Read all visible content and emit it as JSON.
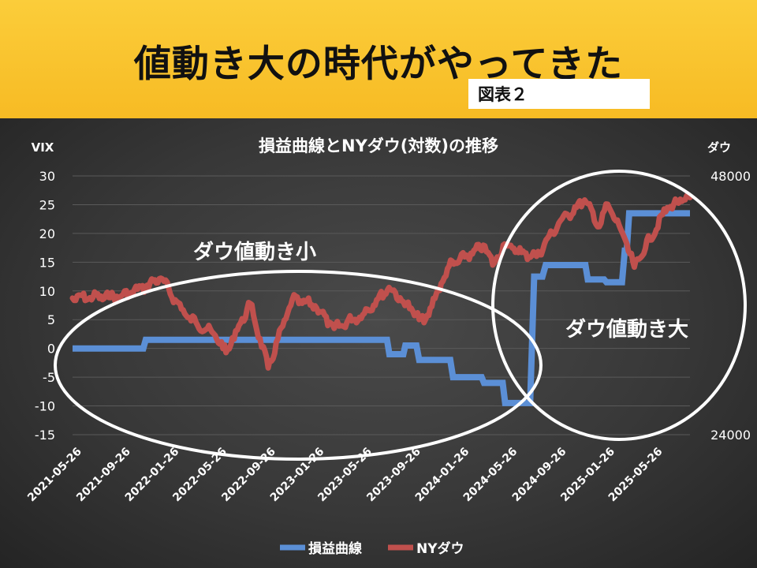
{
  "banner": {
    "title": "値動き大の時代がやってきた",
    "figure_label": "図表２"
  },
  "chart_data": {
    "type": "line",
    "title": "損益曲線とNYダウ(対数)の推移",
    "left_axis": {
      "label": "VIX",
      "ticks": [
        30,
        25,
        20,
        15,
        10,
        5,
        0,
        -5,
        -10,
        -15
      ],
      "range": [
        -15,
        30
      ]
    },
    "right_axis": {
      "label": "ダウ",
      "ticks": [
        "48000",
        "24000"
      ],
      "range": [
        24000,
        48000
      ],
      "scale": "log"
    },
    "x_ticks": [
      "2021-05-26",
      "2021-09-26",
      "2022-01-26",
      "2022-05-26",
      "2022-09-26",
      "2023-01-26",
      "2023-05-26",
      "2023-09-26",
      "2024-01-26",
      "2024-05-26",
      "2024-09-26",
      "2025-01-26",
      "2025-05-26"
    ],
    "grid": true,
    "legend": "bottom",
    "series": [
      {
        "name": "損益曲線",
        "color": "#5b8fd6",
        "axis": "left",
        "points": [
          [
            "2021-05-26",
            0
          ],
          [
            "2021-11-20",
            0
          ],
          [
            "2021-11-26",
            1.5
          ],
          [
            "2023-07-26",
            1.5
          ],
          [
            "2023-08-01",
            -1
          ],
          [
            "2023-09-05",
            -1
          ],
          [
            "2023-09-10",
            0.5
          ],
          [
            "2023-10-08",
            0.5
          ],
          [
            "2023-10-15",
            -2
          ],
          [
            "2024-01-01",
            -2
          ],
          [
            "2024-01-08",
            -5
          ],
          [
            "2024-03-20",
            -5
          ],
          [
            "2024-03-26",
            -6
          ],
          [
            "2024-05-12",
            -6
          ],
          [
            "2024-05-18",
            -9.5
          ],
          [
            "2024-07-20",
            -9.5
          ],
          [
            "2024-07-30",
            12.5
          ],
          [
            "2024-08-20",
            12.5
          ],
          [
            "2024-08-28",
            14.5
          ],
          [
            "2024-12-06",
            14.5
          ],
          [
            "2024-12-12",
            12
          ],
          [
            "2025-01-22",
            12
          ],
          [
            "2025-01-28",
            11.5
          ],
          [
            "2025-03-08",
            11.5
          ],
          [
            "2025-03-15",
            17
          ],
          [
            "2025-03-20",
            17
          ],
          [
            "2025-03-26",
            23.5
          ],
          [
            "2025-08-26",
            23.5
          ]
        ]
      },
      {
        "name": "NYダウ",
        "color": "#c0504d",
        "axis": "right",
        "points": [
          [
            "2021-05-26",
            34600
          ],
          [
            "2021-09-26",
            34800
          ],
          [
            "2021-11-26",
            35700
          ],
          [
            "2022-01-03",
            36500
          ],
          [
            "2022-03-08",
            33000
          ],
          [
            "2022-05-20",
            31300
          ],
          [
            "2022-06-16",
            29900
          ],
          [
            "2022-08-16",
            34100
          ],
          [
            "2022-09-30",
            28700
          ],
          [
            "2022-11-30",
            34500
          ],
          [
            "2023-01-26",
            33900
          ],
          [
            "2023-03-15",
            31900
          ],
          [
            "2023-05-26",
            33100
          ],
          [
            "2023-07-31",
            35600
          ],
          [
            "2023-10-27",
            32400
          ],
          [
            "2023-12-29",
            37700
          ],
          [
            "2024-03-28",
            39800
          ],
          [
            "2024-04-17",
            37800
          ],
          [
            "2024-05-17",
            40000
          ],
          [
            "2024-06-28",
            39100
          ],
          [
            "2024-08-05",
            38700
          ],
          [
            "2024-09-30",
            42300
          ],
          [
            "2024-12-04",
            45000
          ],
          [
            "2025-01-10",
            41900
          ],
          [
            "2025-01-31",
            44500
          ],
          [
            "2025-03-13",
            40800
          ],
          [
            "2025-04-08",
            37600
          ],
          [
            "2025-06-30",
            44100
          ],
          [
            "2025-08-26",
            45300
          ]
        ]
      }
    ]
  },
  "annotations": {
    "left_ellipse_label": "ダウ値動き小",
    "right_ellipse_label": "ダウ値動き大"
  }
}
